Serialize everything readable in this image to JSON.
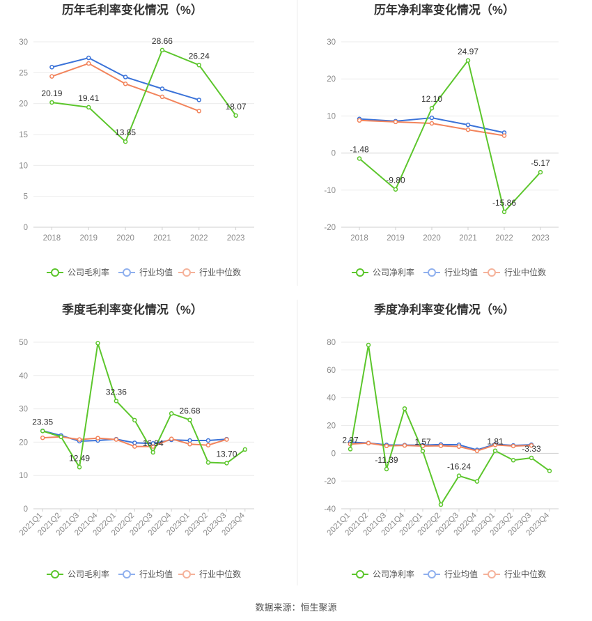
{
  "source_text": "数据来源：恒生聚源",
  "colors": {
    "company": "#5cc62c",
    "avg": "#3a72d8",
    "median": "#f2845c",
    "legend_avg": "#8fb0ee",
    "legend_median": "#f5b29a"
  },
  "chart_data": [
    {
      "type": "line",
      "title": "历年毛利率变化情况（%）",
      "categories": [
        "2018",
        "2019",
        "2020",
        "2021",
        "2022",
        "2023"
      ],
      "ylim": [
        0,
        30
      ],
      "yticks": [
        0,
        5,
        10,
        15,
        20,
        25,
        30
      ],
      "grid": true,
      "legend_position": "bottom",
      "series": [
        {
          "name": "公司毛利率",
          "key": "company",
          "values": [
            20.19,
            19.41,
            13.85,
            28.66,
            26.24,
            18.07
          ],
          "labels": [
            "20.19",
            "19.41",
            "13.85",
            "28.66",
            "26.24",
            "18.07"
          ]
        },
        {
          "name": "行业均值",
          "key": "avg",
          "values": [
            25.9,
            27.4,
            24.3,
            22.4,
            20.6,
            null
          ]
        },
        {
          "name": "行业中位数",
          "key": "median",
          "values": [
            24.4,
            26.5,
            23.2,
            21.1,
            18.8,
            null
          ]
        }
      ]
    },
    {
      "type": "line",
      "title": "历年净利率变化情况（%）",
      "categories": [
        "2018",
        "2019",
        "2020",
        "2021",
        "2022",
        "2023"
      ],
      "ylim": [
        -20,
        30
      ],
      "yticks": [
        -20,
        -10,
        0,
        10,
        20,
        30
      ],
      "grid": true,
      "legend_position": "bottom",
      "series": [
        {
          "name": "公司净利率",
          "key": "company",
          "values": [
            -1.48,
            -9.8,
            12.1,
            24.97,
            -15.86,
            -5.17
          ],
          "labels": [
            "-1.48",
            "-9.80",
            "12.10",
            "24.97",
            "-15.86",
            "-5.17"
          ]
        },
        {
          "name": "行业均值",
          "key": "avg",
          "values": [
            9.2,
            8.6,
            9.5,
            7.6,
            5.5,
            null
          ]
        },
        {
          "name": "行业中位数",
          "key": "median",
          "values": [
            8.8,
            8.4,
            8.0,
            6.3,
            4.7,
            null
          ]
        }
      ]
    },
    {
      "type": "line",
      "title": "季度毛利率变化情况（%）",
      "categories": [
        "2021Q1",
        "2021Q2",
        "2021Q3",
        "2021Q4",
        "2022Q1",
        "2022Q2",
        "2022Q3",
        "2022Q4",
        "2023Q1",
        "2023Q2",
        "2023Q3",
        "2023Q4"
      ],
      "ylim": [
        0,
        50
      ],
      "yticks": [
        0,
        10,
        20,
        30,
        40,
        50
      ],
      "grid": true,
      "legend_position": "bottom",
      "series": [
        {
          "name": "公司毛利率",
          "key": "company",
          "values": [
            23.35,
            21.6,
            12.49,
            49.7,
            32.36,
            26.6,
            16.94,
            28.6,
            26.68,
            13.9,
            13.7,
            17.8
          ],
          "labels": [
            "23.35",
            "",
            "12.49",
            "",
            "32.36",
            "",
            "16.94",
            "",
            "26.68",
            "",
            "13.70",
            ""
          ]
        },
        {
          "name": "行业均值",
          "key": "avg",
          "values": [
            23.4,
            22.0,
            20.3,
            20.5,
            20.9,
            19.8,
            19.6,
            20.7,
            20.5,
            20.5,
            20.9,
            null
          ]
        },
        {
          "name": "行业中位数",
          "key": "median",
          "values": [
            21.3,
            21.6,
            20.8,
            21.2,
            20.8,
            18.7,
            18.7,
            21.0,
            19.4,
            19.1,
            20.8,
            null
          ]
        }
      ]
    },
    {
      "type": "line",
      "title": "季度净利率变化情况（%）",
      "categories": [
        "2021Q1",
        "2021Q2",
        "2021Q3",
        "2021Q4",
        "2022Q1",
        "2022Q2",
        "2022Q3",
        "2022Q4",
        "2023Q1",
        "2023Q2",
        "2023Q3",
        "2023Q4"
      ],
      "ylim": [
        -40,
        80
      ],
      "yticks": [
        -40,
        -20,
        0,
        20,
        40,
        60,
        80
      ],
      "grid": true,
      "legend_position": "bottom",
      "series": [
        {
          "name": "公司净利率",
          "key": "company",
          "values": [
            2.97,
            78.0,
            -11.39,
            32.2,
            1.57,
            -37.0,
            -16.24,
            -20.3,
            1.81,
            -5.0,
            -3.33,
            -12.7
          ],
          "labels": [
            "2.97",
            "",
            "-11.39",
            "",
            "1.57",
            "",
            "-16.24",
            "",
            "1.81",
            "",
            "-3.33",
            ""
          ]
        },
        {
          "name": "行业均值",
          "key": "avg",
          "values": [
            8.0,
            7.4,
            6.0,
            5.9,
            5.8,
            6.3,
            6.1,
            2.4,
            6.5,
            5.6,
            6.1,
            null
          ]
        },
        {
          "name": "行业中位数",
          "key": "median",
          "values": [
            6.6,
            7.3,
            5.3,
            5.6,
            5.2,
            5.4,
            4.8,
            1.7,
            6.0,
            5.2,
            5.6,
            null
          ]
        }
      ]
    }
  ]
}
